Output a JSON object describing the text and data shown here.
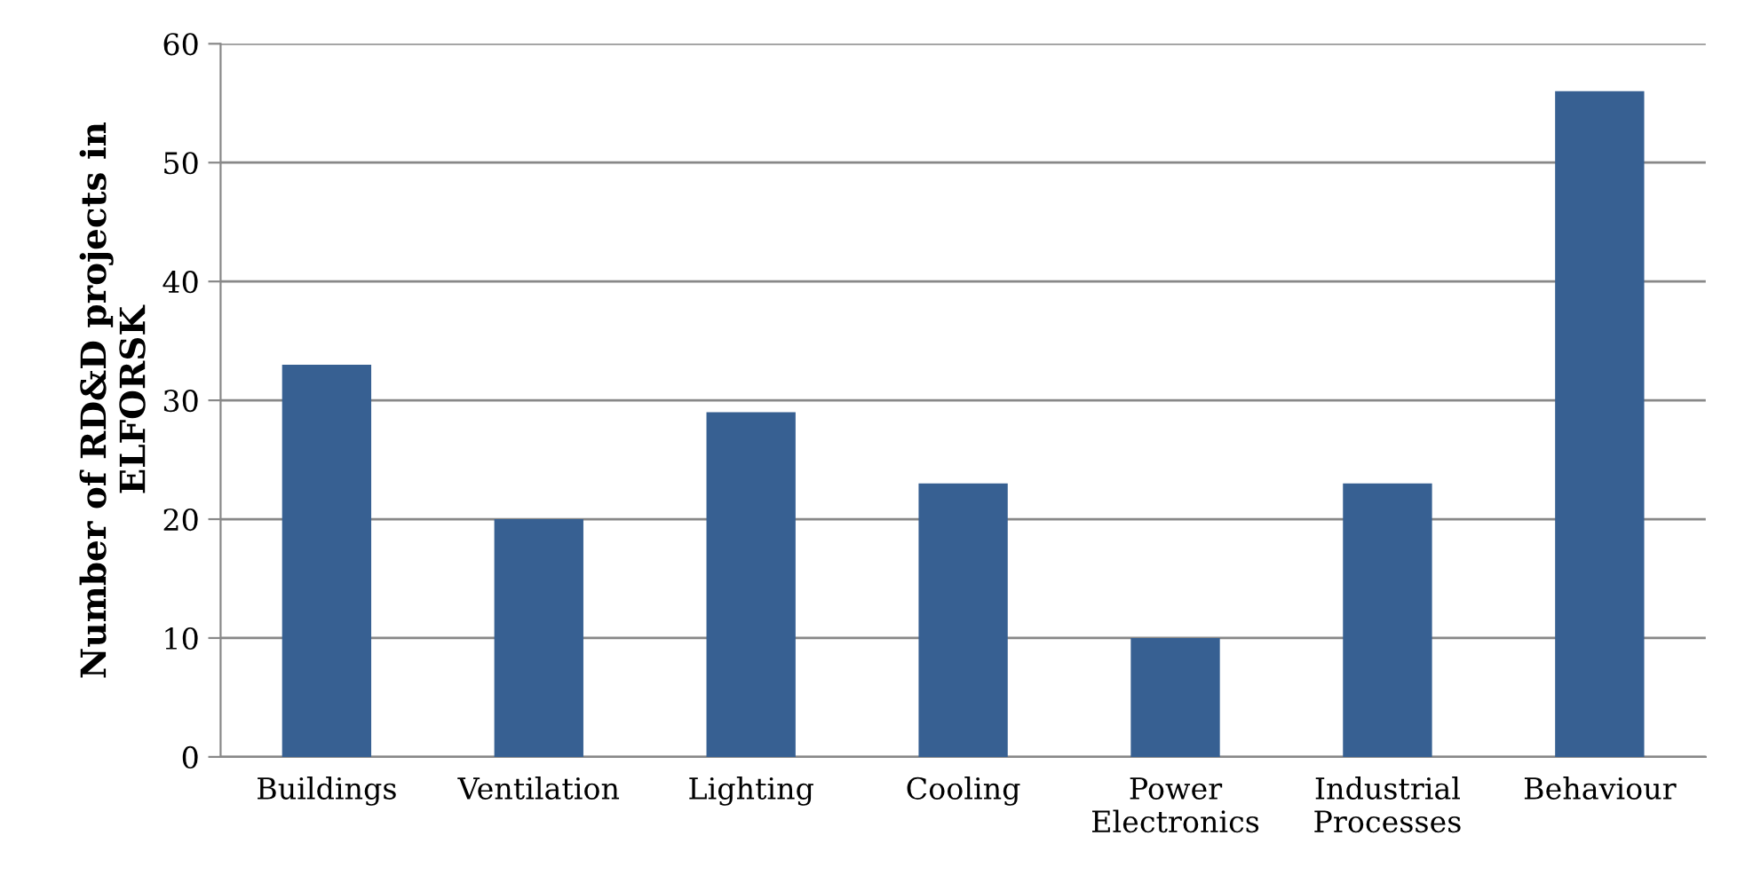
{
  "chart_data": {
    "type": "bar",
    "categories": [
      "Buildings",
      "Ventilation",
      "Lighting",
      "Cooling",
      "Power\nElectronics",
      "Industrial\nProcesses",
      "Behaviour"
    ],
    "values": [
      33,
      20,
      29,
      23,
      10,
      23,
      56
    ],
    "color": "#376092",
    "ylabel": "Number of RD&D projects in\nELFORSK",
    "ylim": [
      0,
      60
    ],
    "yticks": [
      0,
      10,
      20,
      30,
      40,
      50,
      60
    ],
    "grid": "y"
  }
}
